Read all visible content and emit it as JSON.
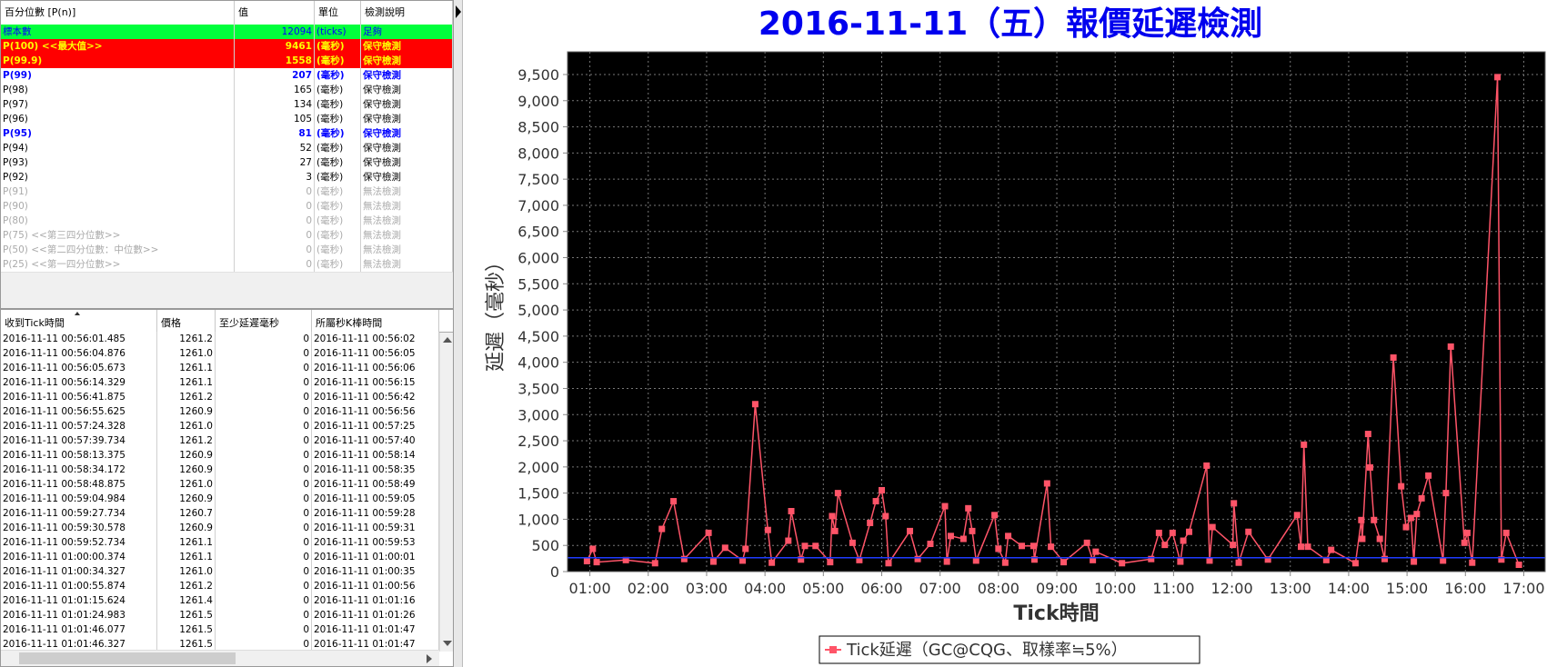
{
  "percentile_table": {
    "headers": [
      "百分位數 [P(n)]",
      "值",
      "單位",
      "檢測說明"
    ],
    "rows": [
      {
        "cells": [
          "標本數",
          "12094",
          "(ticks)",
          "足夠"
        ],
        "style": "count"
      },
      {
        "cells": [
          "P(100)  <<最大值>>",
          "9461",
          "(毫秒)",
          "保守檢測"
        ],
        "style": "alert"
      },
      {
        "cells": [
          "P(99.9)",
          "1558",
          "(毫秒)",
          "保守檢測"
        ],
        "style": "alert"
      },
      {
        "cells": [
          "P(99)",
          "207",
          "(毫秒)",
          "保守檢測"
        ],
        "style": "highlight"
      },
      {
        "cells": [
          "P(98)",
          "165",
          "(毫秒)",
          "保守檢測"
        ],
        "style": "normal"
      },
      {
        "cells": [
          "P(97)",
          "134",
          "(毫秒)",
          "保守檢測"
        ],
        "style": "normal"
      },
      {
        "cells": [
          "P(96)",
          "105",
          "(毫秒)",
          "保守檢測"
        ],
        "style": "normal"
      },
      {
        "cells": [
          "P(95)",
          "81",
          "(毫秒)",
          "保守檢測"
        ],
        "style": "highlight"
      },
      {
        "cells": [
          "P(94)",
          "52",
          "(毫秒)",
          "保守檢測"
        ],
        "style": "normal"
      },
      {
        "cells": [
          "P(93)",
          "27",
          "(毫秒)",
          "保守檢測"
        ],
        "style": "normal"
      },
      {
        "cells": [
          "P(92)",
          "3",
          "(毫秒)",
          "保守檢測"
        ],
        "style": "normal"
      },
      {
        "cells": [
          "P(91)",
          "0",
          "(毫秒)",
          "無法檢測"
        ],
        "style": "disabled"
      },
      {
        "cells": [
          "P(90)",
          "0",
          "(毫秒)",
          "無法檢測"
        ],
        "style": "disabled"
      },
      {
        "cells": [
          "P(80)",
          "0",
          "(毫秒)",
          "無法檢測"
        ],
        "style": "disabled"
      },
      {
        "cells": [
          "P(75)  <<第三四分位數>>",
          "0",
          "(毫秒)",
          "無法檢測"
        ],
        "style": "disabled"
      },
      {
        "cells": [
          "P(50)  <<第二四分位數：中位數>>",
          "0",
          "(毫秒)",
          "無法檢測"
        ],
        "style": "disabled"
      },
      {
        "cells": [
          "P(25)  <<第一四分位數>>",
          "0",
          "(毫秒)",
          "無法檢測"
        ],
        "style": "disabled"
      }
    ]
  },
  "tick_table": {
    "headers": [
      "收到Tick時間",
      "價格",
      "至少延遲毫秒",
      "所屬秒K棒時間"
    ],
    "rows": [
      [
        "2016-11-11 00:56:01.485",
        "1261.2",
        "0",
        "2016-11-11 00:56:02"
      ],
      [
        "2016-11-11 00:56:04.876",
        "1261.0",
        "0",
        "2016-11-11 00:56:05"
      ],
      [
        "2016-11-11 00:56:05.673",
        "1261.1",
        "0",
        "2016-11-11 00:56:06"
      ],
      [
        "2016-11-11 00:56:14.329",
        "1261.1",
        "0",
        "2016-11-11 00:56:15"
      ],
      [
        "2016-11-11 00:56:41.875",
        "1261.2",
        "0",
        "2016-11-11 00:56:42"
      ],
      [
        "2016-11-11 00:56:55.625",
        "1260.9",
        "0",
        "2016-11-11 00:56:56"
      ],
      [
        "2016-11-11 00:57:24.328",
        "1261.0",
        "0",
        "2016-11-11 00:57:25"
      ],
      [
        "2016-11-11 00:57:39.734",
        "1261.2",
        "0",
        "2016-11-11 00:57:40"
      ],
      [
        "2016-11-11 00:58:13.375",
        "1260.9",
        "0",
        "2016-11-11 00:58:14"
      ],
      [
        "2016-11-11 00:58:34.172",
        "1260.9",
        "0",
        "2016-11-11 00:58:35"
      ],
      [
        "2016-11-11 00:58:48.875",
        "1261.0",
        "0",
        "2016-11-11 00:58:49"
      ],
      [
        "2016-11-11 00:59:04.984",
        "1260.9",
        "0",
        "2016-11-11 00:59:05"
      ],
      [
        "2016-11-11 00:59:27.734",
        "1260.7",
        "0",
        "2016-11-11 00:59:28"
      ],
      [
        "2016-11-11 00:59:30.578",
        "1260.9",
        "0",
        "2016-11-11 00:59:31"
      ],
      [
        "2016-11-11 00:59:52.734",
        "1261.1",
        "0",
        "2016-11-11 00:59:53"
      ],
      [
        "2016-11-11 01:00:00.374",
        "1261.1",
        "0",
        "2016-11-11 01:00:01"
      ],
      [
        "2016-11-11 01:00:34.327",
        "1261.0",
        "0",
        "2016-11-11 01:00:35"
      ],
      [
        "2016-11-11 01:00:55.874",
        "1261.2",
        "0",
        "2016-11-11 01:00:56"
      ],
      [
        "2016-11-11 01:01:15.624",
        "1261.4",
        "0",
        "2016-11-11 01:01:16"
      ],
      [
        "2016-11-11 01:01:24.983",
        "1261.5",
        "0",
        "2016-11-11 01:01:26"
      ],
      [
        "2016-11-11 01:01:46.077",
        "1261.5",
        "0",
        "2016-11-11 01:01:47"
      ],
      [
        "2016-11-11 01:01:46.327",
        "1261.5",
        "0",
        "2016-11-11 01:01:47"
      ]
    ]
  },
  "chart_data": {
    "type": "line",
    "title": "2016-11-11（五）報價延遲檢測",
    "xlabel": "Tick時間",
    "ylabel": "延遲（毫秒）",
    "x": [
      "00:57",
      "01:03",
      "01:07",
      "01:37",
      "02:07",
      "02:14",
      "02:26",
      "02:37",
      "03:02",
      "03:07",
      "03:19",
      "03:37",
      "03:40",
      "03:50",
      "04:03",
      "04:07",
      "04:24",
      "04:27",
      "04:37",
      "04:41",
      "04:52",
      "05:07",
      "05:09",
      "05:12",
      "05:15",
      "05:30",
      "05:37",
      "05:48",
      "05:54",
      "06:00",
      "06:04",
      "06:07",
      "06:29",
      "06:37",
      "06:50",
      "07:05",
      "07:07",
      "07:11",
      "07:24",
      "07:29",
      "07:33",
      "07:37",
      "07:56",
      "08:00",
      "08:07",
      "08:10",
      "08:24",
      "08:36",
      "08:37",
      "08:50",
      "08:54",
      "09:07",
      "09:31",
      "09:37",
      "09:40",
      "10:07",
      "10:37",
      "10:45",
      "10:51",
      "10:59",
      "11:07",
      "11:10",
      "11:16",
      "11:34",
      "11:37",
      "11:40",
      "12:01",
      "12:02",
      "12:07",
      "12:17",
      "12:37",
      "13:07",
      "13:11",
      "13:14",
      "13:18",
      "13:37",
      "13:42",
      "14:07",
      "14:13",
      "14:14",
      "14:20",
      "14:22",
      "14:26",
      "14:32",
      "14:37",
      "14:46",
      "14:54",
      "14:59",
      "15:04",
      "15:07",
      "15:10",
      "15:15",
      "15:22",
      "15:37",
      "15:40",
      "15:45",
      "15:59",
      "16:02",
      "16:07",
      "16:33",
      "16:37",
      "16:42",
      "16:55"
    ],
    "series": [
      {
        "name": "Tick延遲（GC@CQG、取樣率≒5%）",
        "color": "#ff5468",
        "values": [
          200,
          435,
          180,
          220,
          160,
          815,
          1345,
          240,
          740,
          190,
          455,
          210,
          435,
          3200,
          795,
          170,
          590,
          1155,
          230,
          490,
          490,
          180,
          1060,
          775,
          1500,
          550,
          220,
          930,
          1345,
          1555,
          1060,
          160,
          775,
          240,
          530,
          1250,
          190,
          680,
          625,
          1210,
          775,
          210,
          1080,
          435,
          170,
          680,
          490,
          490,
          230,
          1685,
          475,
          180,
          550,
          220,
          380,
          160,
          240,
          740,
          510,
          740,
          190,
          590,
          760,
          2025,
          210,
          850,
          510,
          1305,
          170,
          760,
          230,
          1080,
          475,
          2425,
          475,
          220,
          415,
          160,
          985,
          625,
          2630,
          1990,
          985,
          625,
          240,
          4090,
          1630,
          850,
          1025,
          190,
          1100,
          1400,
          1835,
          210,
          1500,
          4300,
          550,
          740,
          170,
          9450,
          230,
          740,
          130
        ]
      }
    ],
    "reference_line": {
      "value": 265,
      "color": "#1f3cff"
    },
    "xlim": [
      "00:37",
      "17:22"
    ],
    "xticks": [
      "01:00",
      "02:00",
      "03:00",
      "04:00",
      "05:00",
      "06:00",
      "07:00",
      "08:00",
      "09:00",
      "10:00",
      "11:00",
      "12:00",
      "13:00",
      "14:00",
      "15:00",
      "16:00",
      "17:00"
    ],
    "ylim": [
      0,
      9934
    ],
    "yticks": [
      0,
      500,
      {
        "value": 1000,
        "label": "1,000"
      },
      {
        "value": 1500,
        "label": "1,500"
      },
      {
        "value": 2000,
        "label": "2,000"
      },
      {
        "value": 2500,
        "label": "2,500"
      },
      {
        "value": 3000,
        "label": "3,000"
      },
      {
        "value": 3500,
        "label": "3,500"
      },
      {
        "value": 4000,
        "label": "4,000"
      },
      {
        "value": 4500,
        "label": "4,500"
      },
      {
        "value": 5000,
        "label": "5,000"
      },
      {
        "value": 5500,
        "label": "5,500"
      },
      {
        "value": 6000,
        "label": "6,000"
      },
      {
        "value": 6500,
        "label": "6,500"
      },
      {
        "value": 7000,
        "label": "7,000"
      },
      {
        "value": 7500,
        "label": "7,500"
      },
      {
        "value": 8000,
        "label": "8,000"
      },
      {
        "value": 8500,
        "label": "8,500"
      },
      {
        "value": 9000,
        "label": "9,000"
      },
      {
        "value": 9500,
        "label": "9,500"
      }
    ],
    "grid": true,
    "legend": "bottom"
  }
}
